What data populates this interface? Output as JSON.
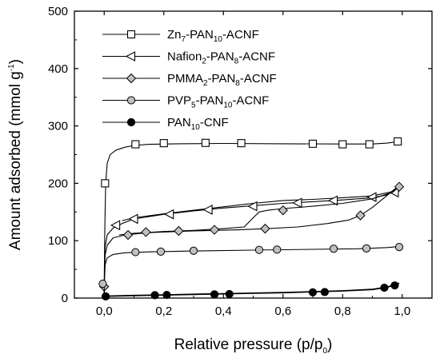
{
  "chart_data": {
    "type": "line",
    "xlabel": "Relative pressure (p/p",
    "xlabel_sub": "0",
    "xlabel_end": ")",
    "ylabel": "Amount adsorbed (mmol g",
    "ylabel_sup": "-1",
    "ylabel_end": ")",
    "xlim": [
      -0.1,
      1.1
    ],
    "ylim": [
      0,
      500
    ],
    "xticks": [
      0.0,
      0.2,
      0.4,
      0.6,
      0.8,
      1.0
    ],
    "xtick_labels": [
      "0,0",
      "0,2",
      "0,4",
      "0,6",
      "0,8",
      "1,0"
    ],
    "yticks": [
      0,
      100,
      200,
      300,
      400,
      500
    ],
    "ytick_labels": [
      "0",
      "100",
      "200",
      "300",
      "400",
      "500"
    ],
    "grid": false,
    "legend_position": "top-left",
    "series": [
      {
        "name_parts": [
          [
            "Zn",
            ""
          ],
          [
            "7",
            "sub"
          ],
          [
            "-PAN",
            ""
          ],
          [
            "10",
            "sub"
          ],
          [
            "-ACNF",
            ""
          ]
        ],
        "marker": "square-open",
        "line": [
          [
            0.0,
            0
          ],
          [
            0.0,
            30
          ],
          [
            0.002,
            120
          ],
          [
            0.005,
            200
          ],
          [
            0.01,
            235
          ],
          [
            0.02,
            250
          ],
          [
            0.04,
            258
          ],
          [
            0.07,
            263
          ],
          [
            0.1,
            266
          ],
          [
            0.15,
            268
          ],
          [
            0.25,
            269
          ],
          [
            0.4,
            269.5
          ],
          [
            0.6,
            269
          ],
          [
            0.8,
            268.5
          ],
          [
            0.9,
            268.5
          ],
          [
            0.95,
            270
          ],
          [
            0.99,
            273
          ]
        ],
        "markers": [
          [
            0.003,
            200
          ],
          [
            0.105,
            268
          ],
          [
            0.2,
            270
          ],
          [
            0.34,
            270.5
          ],
          [
            0.46,
            270
          ],
          [
            0.7,
            269
          ],
          [
            0.8,
            268
          ],
          [
            0.89,
            268
          ],
          [
            0.985,
            273
          ]
        ]
      },
      {
        "name_parts": [
          [
            "Nafion",
            ""
          ],
          [
            "2",
            "sub"
          ],
          [
            "-PAN",
            ""
          ],
          [
            "8",
            "sub"
          ],
          [
            "-ACNF",
            ""
          ]
        ],
        "marker": "triangle-left-open",
        "line": [
          [
            0.0,
            0
          ],
          [
            0.0,
            25
          ],
          [
            0.003,
            90
          ],
          [
            0.01,
            110
          ],
          [
            0.03,
            122
          ],
          [
            0.06,
            130
          ],
          [
            0.1,
            138
          ],
          [
            0.2,
            146
          ],
          [
            0.3,
            152
          ],
          [
            0.4,
            157
          ],
          [
            0.5,
            161
          ],
          [
            0.6,
            165
          ],
          [
            0.7,
            168
          ],
          [
            0.8,
            171
          ],
          [
            0.9,
            175
          ],
          [
            0.95,
            180
          ],
          [
            0.985,
            190
          ],
          [
            0.97,
            186
          ],
          [
            0.9,
            178
          ],
          [
            0.8,
            175
          ],
          [
            0.7,
            172
          ],
          [
            0.6,
            170
          ],
          [
            0.5,
            165
          ],
          [
            0.4,
            159
          ],
          [
            0.3,
            153
          ],
          [
            0.2,
            147
          ],
          [
            0.1,
            140
          ],
          [
            0.06,
            135
          ]
        ],
        "markers": [
          [
            0.04,
            127
          ],
          [
            0.1,
            138
          ],
          [
            0.22,
            146
          ],
          [
            0.35,
            154
          ],
          [
            0.5,
            160
          ],
          [
            0.65,
            166
          ],
          [
            0.77,
            170
          ],
          [
            0.9,
            176
          ],
          [
            0.975,
            184
          ]
        ]
      },
      {
        "name_parts": [
          [
            "PMMA",
            ""
          ],
          [
            "2",
            "sub"
          ],
          [
            "-PAN",
            ""
          ],
          [
            "8",
            "sub"
          ],
          [
            "-ACNF",
            ""
          ]
        ],
        "marker": "diamond-gray",
        "line": [
          [
            0.0,
            0
          ],
          [
            0.0,
            22
          ],
          [
            0.003,
            75
          ],
          [
            0.01,
            92
          ],
          [
            0.03,
            105
          ],
          [
            0.07,
            110
          ],
          [
            0.15,
            114
          ],
          [
            0.3,
            117
          ],
          [
            0.45,
            119
          ],
          [
            0.55,
            121
          ],
          [
            0.65,
            124
          ],
          [
            0.75,
            130
          ],
          [
            0.82,
            136
          ],
          [
            0.86,
            144
          ],
          [
            0.9,
            158
          ],
          [
            0.94,
            175
          ],
          [
            0.97,
            188
          ],
          [
            0.99,
            195
          ],
          [
            0.97,
            185
          ],
          [
            0.9,
            173
          ],
          [
            0.8,
            165
          ],
          [
            0.7,
            160
          ],
          [
            0.6,
            156
          ],
          [
            0.55,
            153
          ],
          [
            0.52,
            150
          ],
          [
            0.5,
            140
          ],
          [
            0.47,
            124
          ],
          [
            0.4,
            121
          ],
          [
            0.3,
            118
          ],
          [
            0.2,
            116
          ],
          [
            0.1,
            113
          ],
          [
            0.05,
            110
          ]
        ],
        "markers": [
          [
            0.0,
            20
          ],
          [
            0.08,
            110
          ],
          [
            0.14,
            115
          ],
          [
            0.25,
            117
          ],
          [
            0.37,
            119
          ],
          [
            0.54,
            121
          ],
          [
            0.6,
            153
          ],
          [
            0.86,
            144
          ],
          [
            0.99,
            194
          ]
        ]
      },
      {
        "name_parts": [
          [
            "PVP",
            ""
          ],
          [
            "5",
            "sub"
          ],
          [
            "-PAN",
            ""
          ],
          [
            "10",
            "sub"
          ],
          [
            "-ACNF",
            ""
          ]
        ],
        "marker": "circle-gray",
        "line": [
          [
            0.0,
            0
          ],
          [
            0.0,
            20
          ],
          [
            0.003,
            58
          ],
          [
            0.01,
            70
          ],
          [
            0.03,
            76
          ],
          [
            0.07,
            79
          ],
          [
            0.15,
            80.5
          ],
          [
            0.3,
            82
          ],
          [
            0.5,
            83.5
          ],
          [
            0.7,
            85
          ],
          [
            0.85,
            86
          ],
          [
            0.95,
            88
          ],
          [
            0.99,
            90
          ]
        ],
        "markers": [
          [
            -0.005,
            25
          ],
          [
            0.105,
            80
          ],
          [
            0.19,
            81
          ],
          [
            0.3,
            82.5
          ],
          [
            0.52,
            84
          ],
          [
            0.58,
            84.5
          ],
          [
            0.77,
            86
          ],
          [
            0.88,
            86.5
          ],
          [
            0.99,
            89
          ]
        ]
      },
      {
        "name_parts": [
          [
            "PAN",
            ""
          ],
          [
            "10",
            "sub"
          ],
          [
            "-CNF",
            ""
          ]
        ],
        "marker": "circle-black",
        "line": [
          [
            0.0,
            0
          ],
          [
            0.0,
            2
          ],
          [
            0.02,
            3.5
          ],
          [
            0.1,
            4.5
          ],
          [
            0.2,
            5.5
          ],
          [
            0.3,
            6.5
          ],
          [
            0.4,
            7.5
          ],
          [
            0.5,
            8.5
          ],
          [
            0.6,
            9.5
          ],
          [
            0.7,
            11
          ],
          [
            0.8,
            12.5
          ],
          [
            0.9,
            15
          ],
          [
            0.95,
            19
          ],
          [
            0.99,
            26
          ]
        ],
        "markers": [
          [
            0.005,
            3
          ],
          [
            0.17,
            5
          ],
          [
            0.21,
            5.5
          ],
          [
            0.37,
            6.5
          ],
          [
            0.42,
            7
          ],
          [
            0.7,
            10
          ],
          [
            0.74,
            10.5
          ],
          [
            0.94,
            18
          ],
          [
            0.975,
            22
          ]
        ]
      }
    ]
  }
}
